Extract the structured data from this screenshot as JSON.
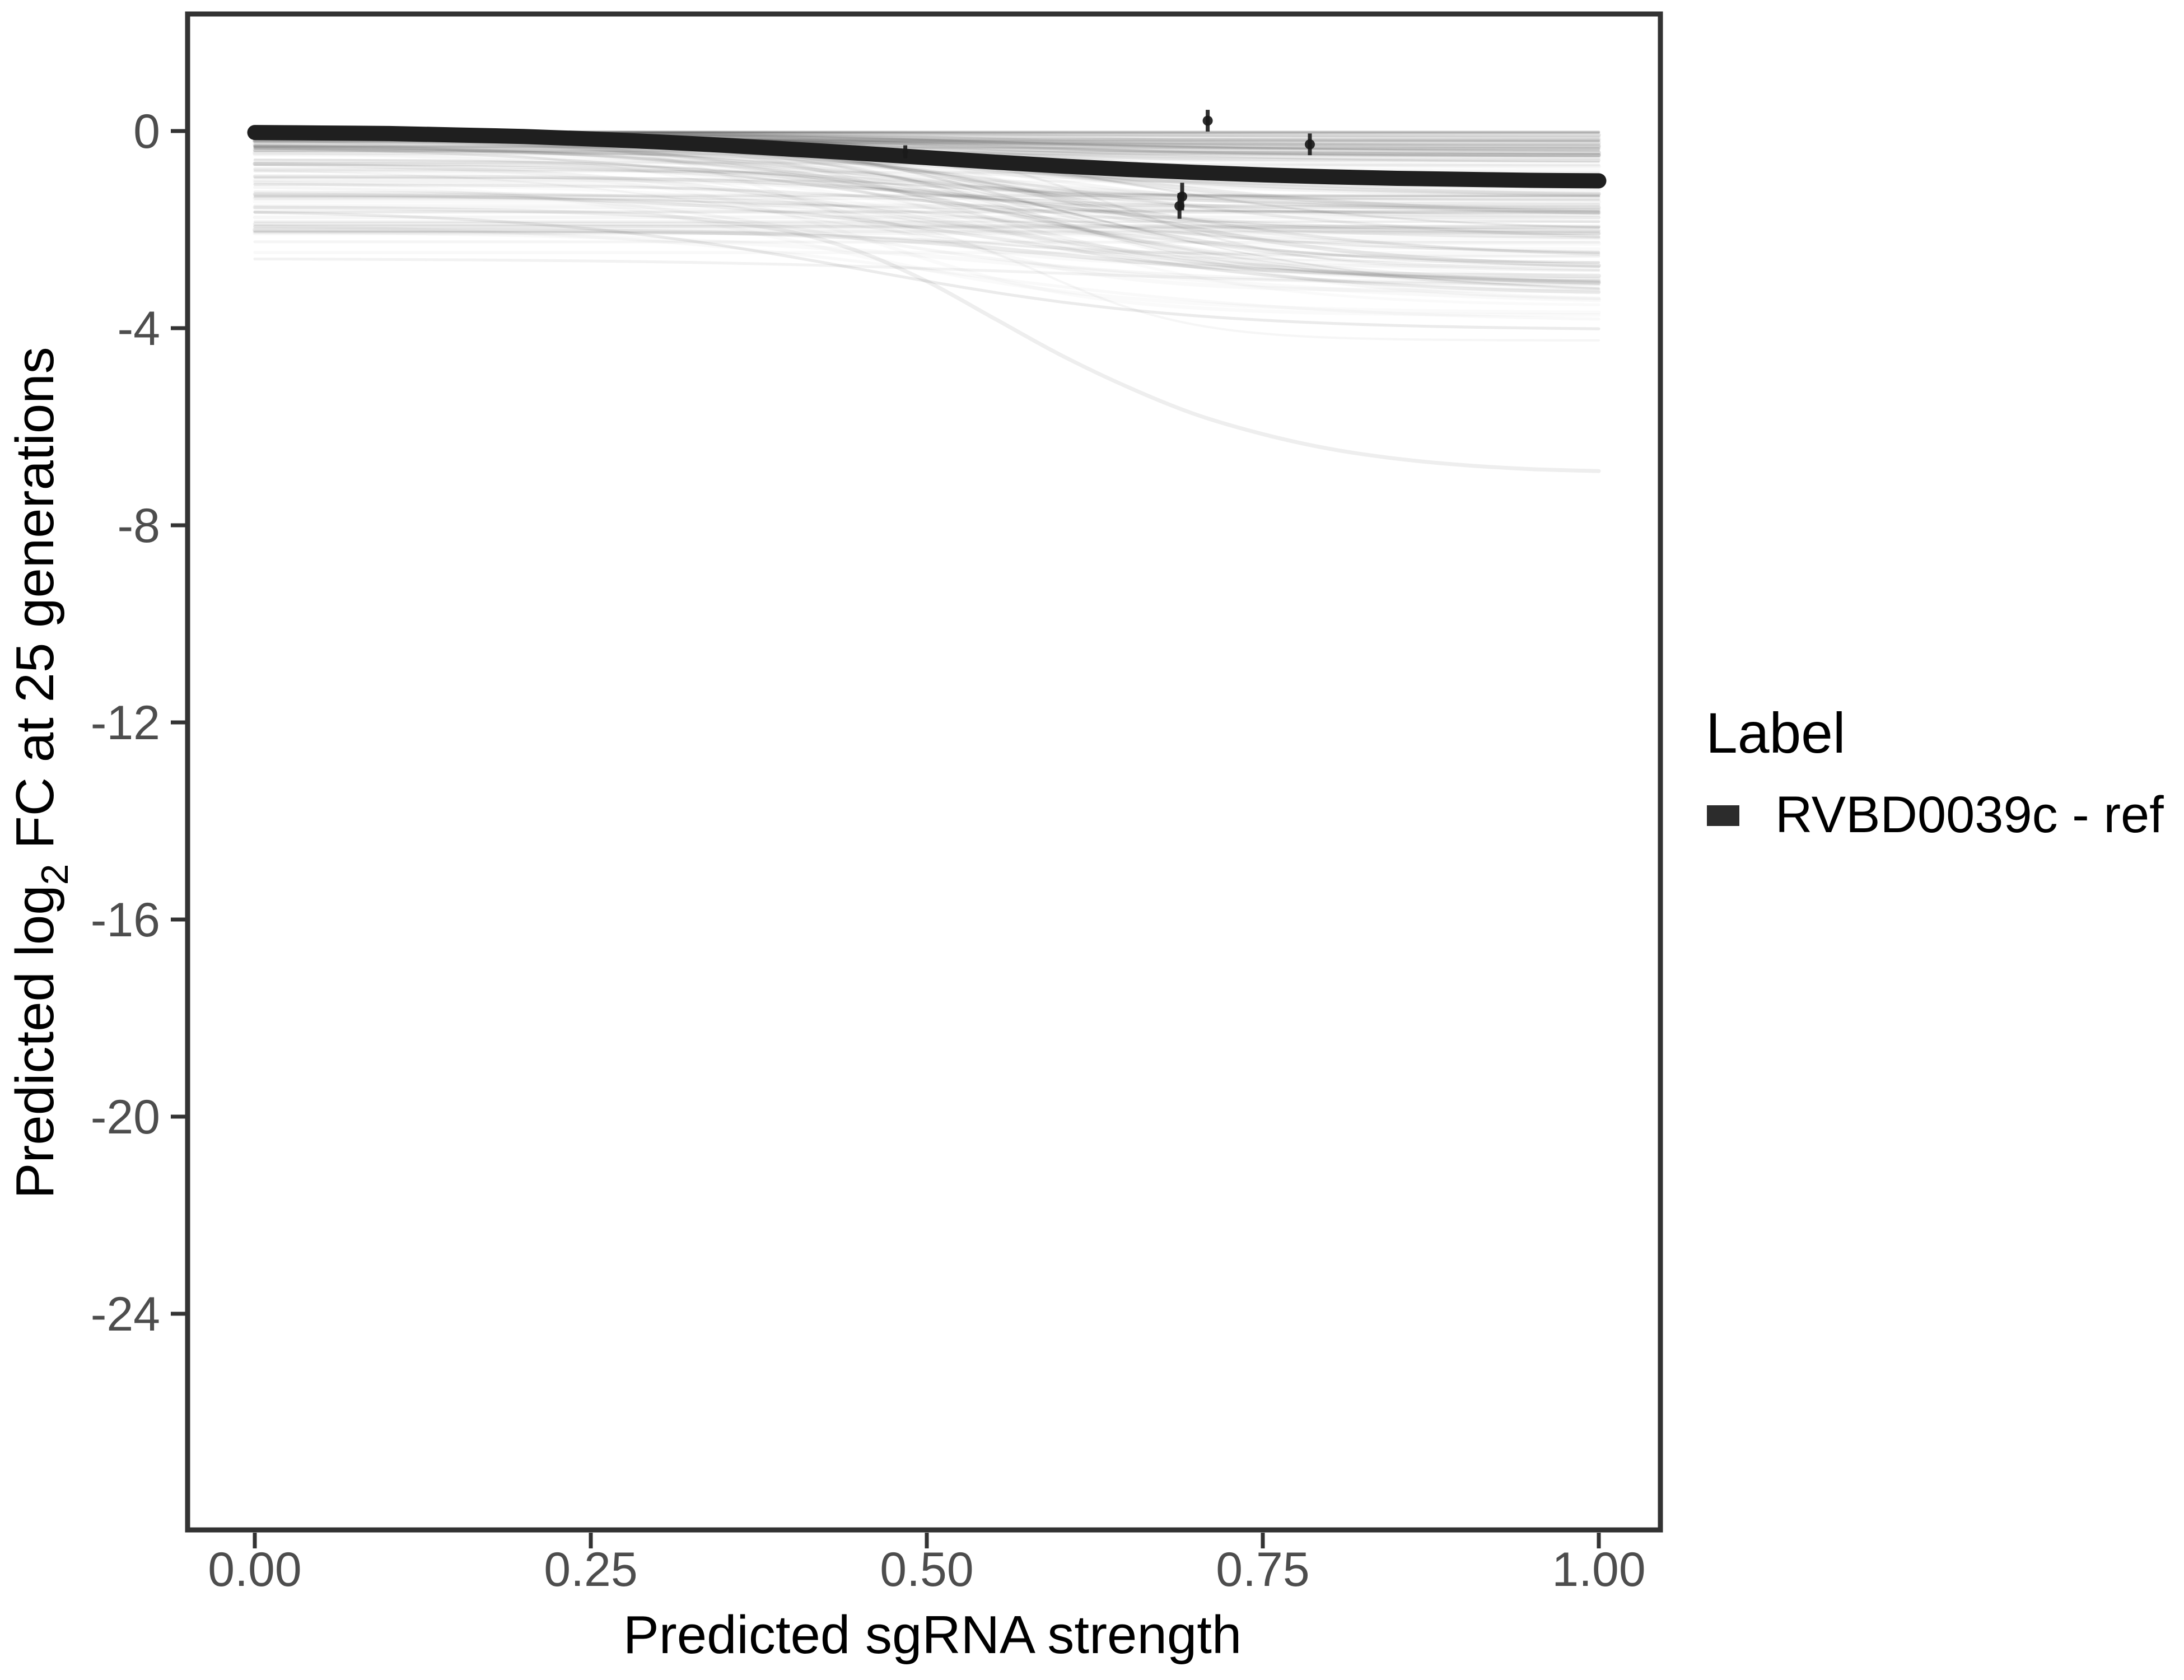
{
  "chart_data": {
    "type": "line",
    "title": "",
    "xlabel": "Predicted sgRNA strength",
    "ylabel_parts": {
      "pre": "Predicted  log",
      "sub": "2",
      "post": " FC at 25 generations"
    },
    "x_ticks": {
      "values": [
        0,
        0.25,
        0.5,
        0.75,
        1
      ],
      "labels": [
        "0.00",
        "0.25",
        "0.50",
        "0.75",
        "1.00"
      ]
    },
    "y_ticks": {
      "values": [
        0,
        -4,
        -8,
        -12,
        -16,
        -20,
        -24
      ],
      "labels": [
        "0",
        "-4",
        "-8",
        "-12",
        "-16",
        "-20",
        "-24"
      ]
    },
    "xlim": [
      0,
      1
    ],
    "ylim_visible": [
      -28.4,
      2.4
    ],
    "grid": "off",
    "legend": {
      "title": "Label",
      "position": "right",
      "items": [
        {
          "label": "RVBD0039c - ref",
          "color": "#2c2c2c"
        }
      ]
    },
    "series": [
      {
        "name": "RVBD0039c - ref",
        "role": "reference",
        "color": "#1f1f1f",
        "stroke_width": 27,
        "x": [
          0,
          0.05,
          0.1,
          0.15,
          0.2,
          0.25,
          0.3,
          0.35,
          0.4,
          0.45,
          0.5,
          0.55,
          0.6,
          0.65,
          0.7,
          0.75,
          0.8,
          0.85,
          0.9,
          0.95,
          1.0
        ],
        "y": [
          -0.03,
          -0.04,
          -0.05,
          -0.08,
          -0.11,
          -0.16,
          -0.22,
          -0.29,
          -0.37,
          -0.45,
          -0.54,
          -0.63,
          -0.71,
          -0.78,
          -0.84,
          -0.89,
          -0.93,
          -0.96,
          -0.98,
          -1.0,
          -1.01
        ]
      }
    ],
    "outlier_curve": {
      "color_alpha": 0.065,
      "stroke_width": 7,
      "x": [
        0,
        0.1,
        0.2,
        0.3,
        0.35,
        0.4,
        0.45,
        0.5,
        0.55,
        0.6,
        0.65,
        0.7,
        0.75,
        0.8,
        0.85,
        0.9,
        0.95,
        1.0
      ],
      "y": [
        -1.55,
        -1.57,
        -1.62,
        -1.72,
        -1.85,
        -2.05,
        -2.45,
        -3.05,
        -3.8,
        -4.55,
        -5.2,
        -5.75,
        -6.15,
        -6.45,
        -6.65,
        -6.78,
        -6.86,
        -6.9
      ]
    },
    "points": [
      {
        "x": 0.484,
        "y": -0.42,
        "r": 5,
        "err": 0.13
      },
      {
        "x": 0.709,
        "y": 0.21,
        "r": 9,
        "err": 0.22
      },
      {
        "x": 0.785,
        "y": -0.27,
        "r": 9,
        "err": 0.22
      },
      {
        "x": 0.69,
        "y": -1.33,
        "r": 9,
        "err": 0.28
      },
      {
        "x": 0.688,
        "y": -1.52,
        "r": 9,
        "err": 0.26
      }
    ],
    "ensemble": {
      "count": 150,
      "seed": 7,
      "start_depth_max": 2.7,
      "start_power": 4,
      "drop_max": 3.3,
      "drop_power": 3.2,
      "end_min": -4.25,
      "center_range": [
        0.38,
        0.64
      ],
      "width_range": [
        0.055,
        0.155
      ],
      "alpha_base": 0.02,
      "alpha_span": 0.07,
      "stroke_range": [
        3,
        8
      ]
    },
    "colors": {
      "background": "#ffffff",
      "panel_border": "#333333",
      "tick_mark": "#333333",
      "tick_label": "#4d4d4d",
      "axis_title": "#000000",
      "reference_line": "#1f1f1f",
      "point": "#1a1a1a",
      "ensemble_line": "#000000",
      "legend_key": "#2c2c2c"
    }
  }
}
